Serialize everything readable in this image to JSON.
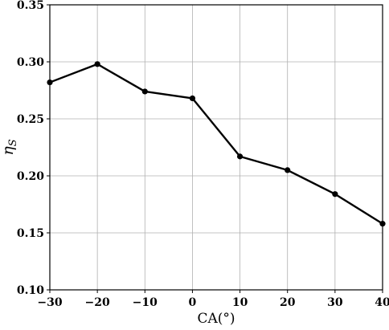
{
  "chart_data": {
    "type": "line",
    "title": "",
    "xlabel": "CA(°)",
    "ylabel": "ηS",
    "xlim": [
      -30,
      40
    ],
    "ylim": [
      0.1,
      0.35
    ],
    "xticks": [
      -30,
      -20,
      -10,
      0,
      10,
      20,
      30,
      40
    ],
    "xtick_labels": [
      "−30",
      "−20",
      "−10",
      "0",
      "10",
      "20",
      "30",
      "40"
    ],
    "yticks": [
      0.1,
      0.15,
      0.2,
      0.25,
      0.3,
      0.35
    ],
    "ytick_labels": [
      "0.10",
      "0.15",
      "0.20",
      "0.25",
      "0.30",
      "0.35"
    ],
    "grid": true,
    "series": [
      {
        "x": [
          -30,
          -20,
          -10,
          0,
          10,
          20,
          30,
          40
        ],
        "values": [
          0.282,
          0.298,
          0.274,
          0.268,
          0.217,
          0.205,
          0.184,
          0.158
        ]
      }
    ],
    "colors": {
      "line": "#000000",
      "grid": "#b0b0b0",
      "frame": "#000000"
    }
  }
}
